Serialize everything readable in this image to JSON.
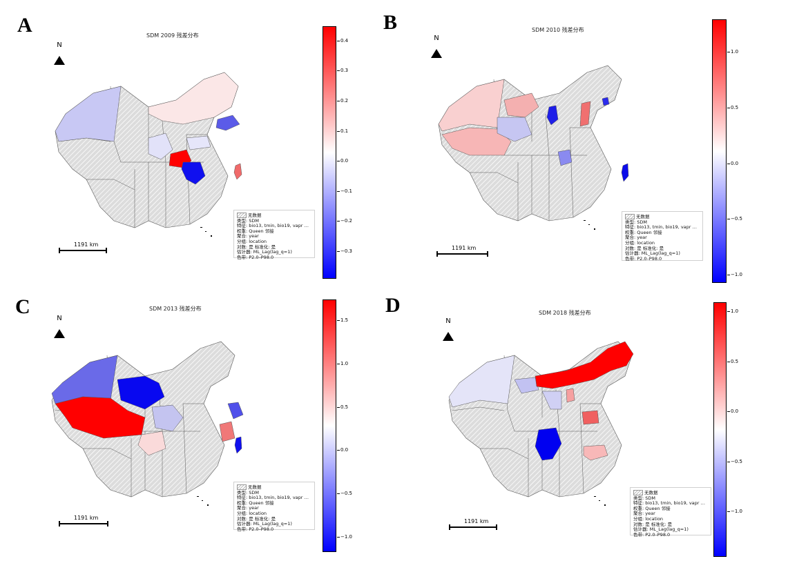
{
  "panels": [
    {
      "letter": "A",
      "title": "SDM 2009 残差分布",
      "north": "N",
      "scale": "1191 km",
      "legend": [
        "无数据",
        "类型: SDM",
        "特征: bio13, tmin, bio19, vapr …",
        "权重: Queen 邻接",
        "聚合: year",
        "分组: location",
        "对数: 是  标准化: 是",
        "估计器: ML_Lag(lag_q=1)",
        "色带: P2.0–P98.0"
      ],
      "colorbar": {
        "max": 0.45,
        "min": -0.39,
        "ticks": [
          "0.4",
          "0.3",
          "0.2",
          "0.1",
          "0.0",
          "−0.1",
          "−0.2",
          "−0.3"
        ],
        "tick_values": [
          0.4,
          0.3,
          0.2,
          0.1,
          0.0,
          -0.1,
          -0.2,
          -0.3
        ]
      },
      "regions": [
        {
          "name": "xinjiang",
          "color": "#c8c8f4"
        },
        {
          "name": "inner-mongolia",
          "color": "#fbe7e7"
        },
        {
          "name": "shandong",
          "color": "#5b5be8"
        },
        {
          "name": "sichuan",
          "color": "#e2e2f9"
        },
        {
          "name": "hubei",
          "color": "#e6e6fa"
        },
        {
          "name": "yunnan",
          "color": "#ff0000"
        },
        {
          "name": "guangxi",
          "color": "#1010ef"
        },
        {
          "name": "taiwan",
          "color": "#f06a6a"
        }
      ]
    },
    {
      "letter": "B",
      "title": "SDM 2010 残差分布",
      "north": "N",
      "scale": "1191 km",
      "legend": [
        "无数据",
        "类型: SDM",
        "特征: bio13, tmin, bio19, vapr …",
        "权重: Queen 邻接",
        "聚合: year",
        "分组: location",
        "对数: 是  标准化: 是",
        "估计器: ML_Lag(lag_q=1)",
        "色带: P2.0–P98.0"
      ],
      "colorbar": {
        "max": 1.3,
        "min": -1.07,
        "ticks": [
          "1.0",
          "0.5",
          "0.0",
          "−0.5",
          "−1.0"
        ],
        "tick_values": [
          1.0,
          0.5,
          0.0,
          -0.5,
          -1.0
        ]
      },
      "regions": [
        {
          "name": "xinjiang",
          "color": "#f9d0d0"
        },
        {
          "name": "tibet",
          "color": "#f7b6b6"
        },
        {
          "name": "gansu",
          "color": "#f4b0b0"
        },
        {
          "name": "qinghai",
          "color": "#c6c6f2"
        },
        {
          "name": "ningxia",
          "color": "#1e1ee8"
        },
        {
          "name": "shanxi",
          "color": "#f07070"
        },
        {
          "name": "beijing",
          "color": "#2a2aec"
        },
        {
          "name": "guizhou",
          "color": "#8a8af0"
        },
        {
          "name": "taiwan",
          "color": "#0c0cea"
        }
      ]
    },
    {
      "letter": "C",
      "title": "SDM 2013 残差分布",
      "north": "N",
      "scale": "1191 km",
      "legend": [
        "无数据",
        "类型: SDM",
        "特征: bio13, tmin, bio19, vapr …",
        "权重: Queen 邻接",
        "聚合: year",
        "分组: location",
        "对数: 是  标准化: 是",
        "估计器: ML_Lag(lag_q=1)",
        "色带: P2.0–P98.0"
      ],
      "colorbar": {
        "max": 1.75,
        "min": -1.17,
        "ticks": [
          "1.5",
          "1.0",
          "0.5",
          "0.0",
          "−0.5",
          "−1.0"
        ],
        "tick_values": [
          1.5,
          1.0,
          0.5,
          0.0,
          -0.5,
          -1.0
        ]
      },
      "regions": [
        {
          "name": "xinjiang",
          "color": "#6a6ae8"
        },
        {
          "name": "tibet",
          "color": "#ff0000"
        },
        {
          "name": "qinghai",
          "color": "#0808f0"
        },
        {
          "name": "sichuan",
          "color": "#c4c4f0"
        },
        {
          "name": "yunnan",
          "color": "#fadada"
        },
        {
          "name": "jiangsu",
          "color": "#5050ea"
        },
        {
          "name": "jiangxi-fujian",
          "color": "#f07878"
        },
        {
          "name": "taiwan",
          "color": "#1010ee"
        }
      ]
    },
    {
      "letter": "D",
      "title": "SDM 2018 残差分布",
      "north": "N",
      "scale": "1191 km",
      "legend": [
        "无数据",
        "类型: SDM",
        "特征: bio13, tmin, bio19, vapr …",
        "权重: Queen 邻接",
        "聚合: year",
        "分组: location",
        "对数: 是  标准化: 是",
        "估计器: ML_Lag(lag_q=1)",
        "色带: P2.0–P98.0"
      ],
      "colorbar": {
        "max": 1.1,
        "min": -1.45,
        "ticks": [
          "1.0",
          "0.5",
          "0.0",
          "−0.5",
          "−1.0"
        ],
        "tick_values": [
          1.0,
          0.5,
          0.0,
          -0.5,
          -1.0
        ]
      },
      "regions": [
        {
          "name": "xinjiang",
          "color": "#e4e4f8"
        },
        {
          "name": "qinghai",
          "color": "#c2c2f2"
        },
        {
          "name": "inner-mongolia",
          "color": "#ff0000"
        },
        {
          "name": "ningxia",
          "color": "#f6a0a0"
        },
        {
          "name": "gansu",
          "color": "#d0d0f4"
        },
        {
          "name": "henan",
          "color": "#f06060"
        },
        {
          "name": "yunnan",
          "color": "#0000f0"
        },
        {
          "name": "guangdong",
          "color": "#f8b8b8"
        }
      ]
    }
  ]
}
